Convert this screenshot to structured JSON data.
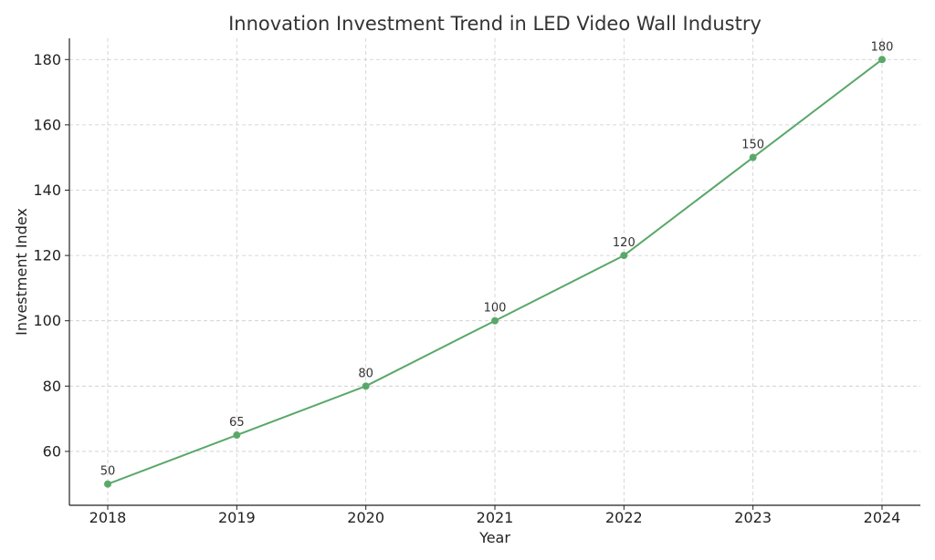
{
  "chart_data": {
    "type": "line",
    "title": "Innovation Investment Trend in LED Video Wall Industry",
    "xlabel": "Year",
    "ylabel": "Investment Index",
    "x": [
      "2018",
      "2019",
      "2020",
      "2021",
      "2022",
      "2023",
      "2024"
    ],
    "series": [
      {
        "values": [
          50,
          65,
          80,
          100,
          120,
          150,
          180
        ],
        "color": "#59a869"
      }
    ],
    "data_labels": [
      "50",
      "65",
      "80",
      "100",
      "120",
      "150",
      "180"
    ],
    "yticks": [
      60,
      80,
      100,
      120,
      140,
      160,
      180
    ],
    "ylim": [
      43.5,
      186.5
    ],
    "grid": true,
    "legend": "none"
  }
}
